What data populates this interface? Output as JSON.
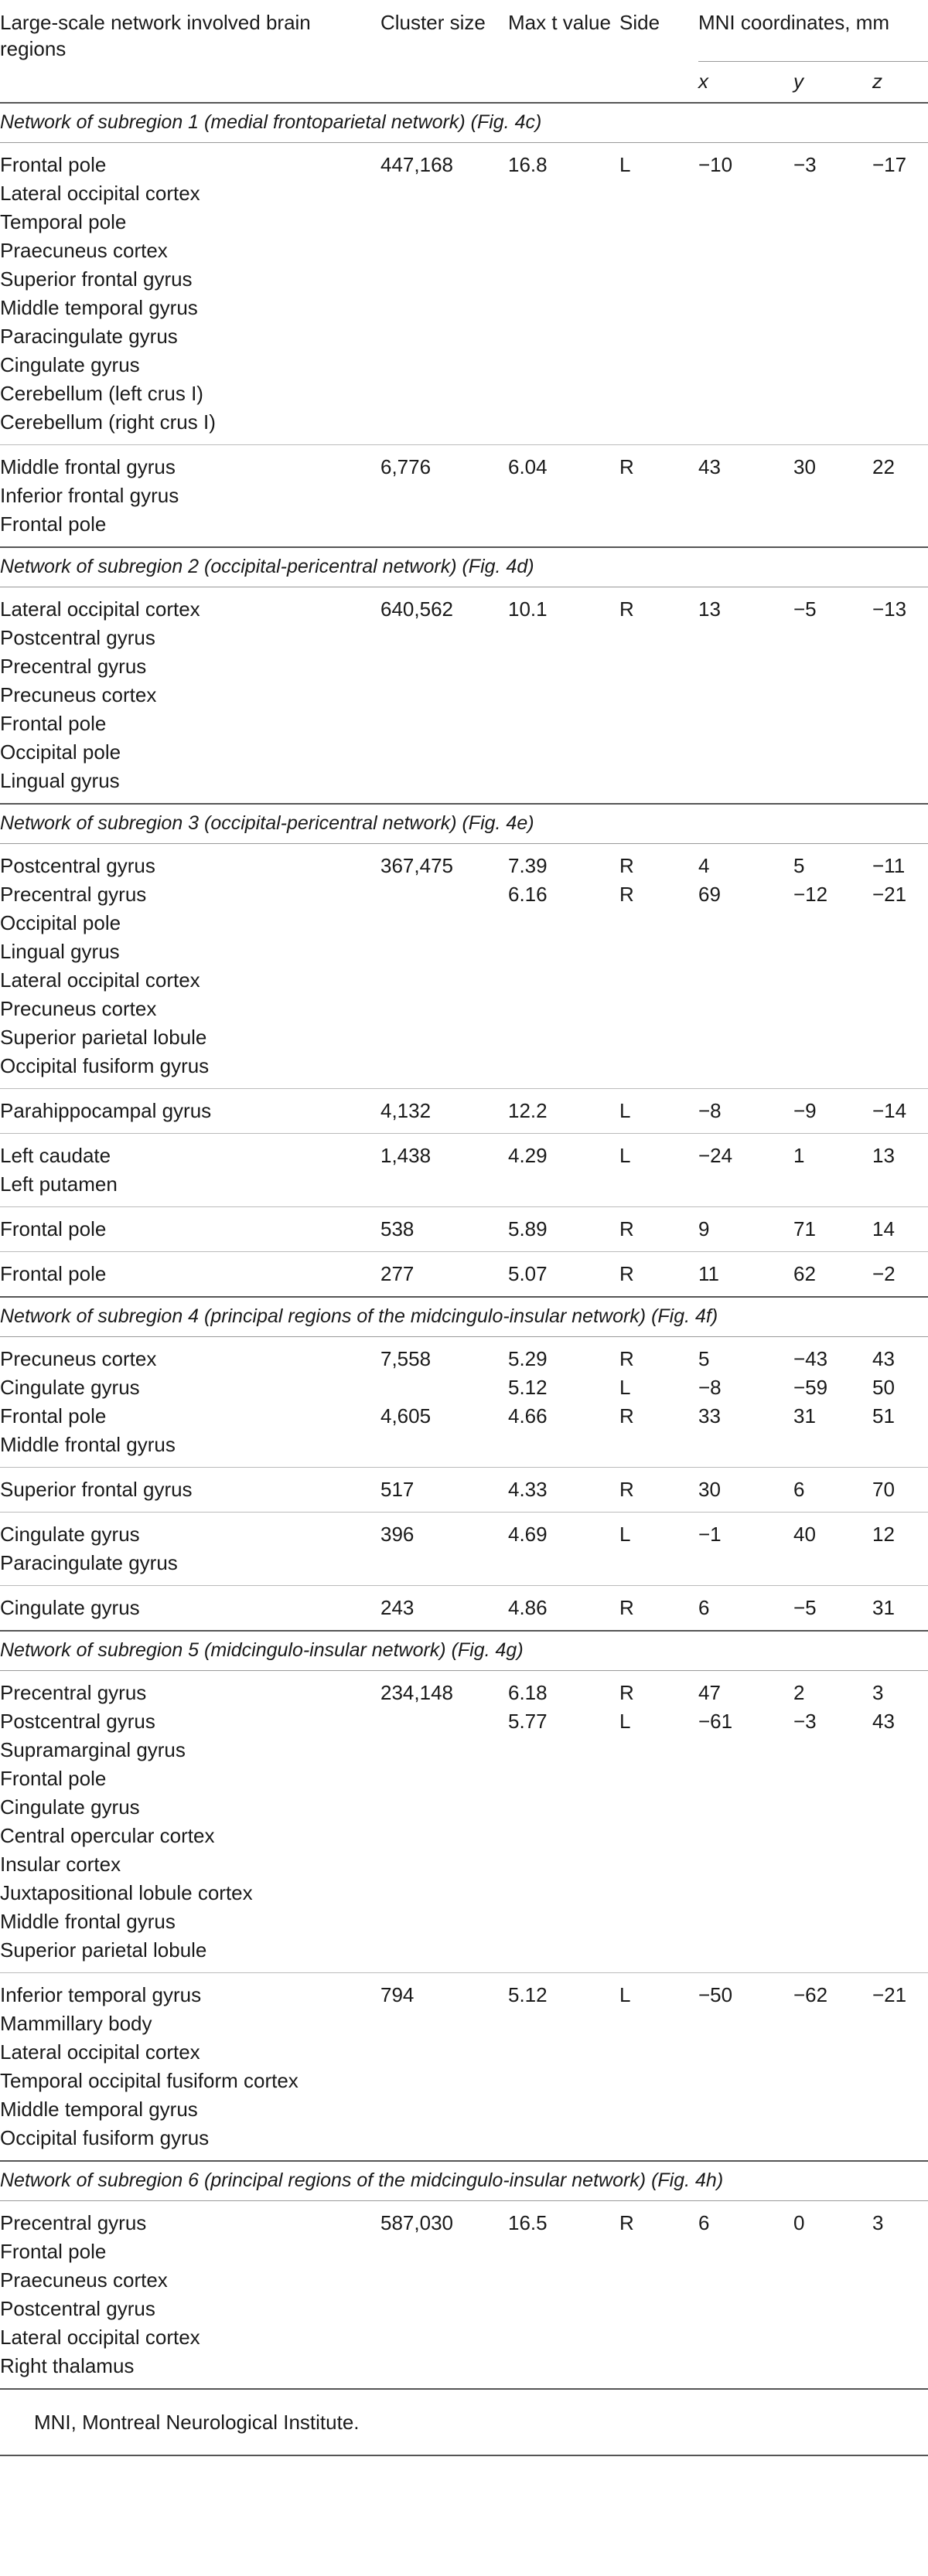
{
  "header": {
    "columns": [
      "Large-scale network involved brain regions",
      "Cluster size",
      "Max t value",
      "Side",
      "MNI coordinates, mm"
    ],
    "coords": [
      "x",
      "y",
      "z"
    ]
  },
  "sections": [
    {
      "title": "Network of subregion 1 (medial frontoparietal network) (Fig. 4c)",
      "rows": [
        [
          {
            "r": "Frontal pole",
            "c": "447,168",
            "t": "16.8",
            "s": "L",
            "x": "−10",
            "y": "−3",
            "z": "−17"
          },
          {
            "r": "Lateral occipital cortex"
          },
          {
            "r": "Temporal pole"
          },
          {
            "r": "Praecuneus cortex"
          },
          {
            "r": "Superior frontal gyrus"
          },
          {
            "r": "Middle temporal gyrus"
          },
          {
            "r": "Paracingulate gyrus"
          },
          {
            "r": "Cingulate gyrus"
          },
          {
            "r": "Cerebellum (left crus I)"
          },
          {
            "r": "Cerebellum (right crus I)"
          }
        ],
        [
          {
            "r": "Middle frontal gyrus",
            "c": "6,776",
            "t": "6.04",
            "s": "R",
            "x": "43",
            "y": "30",
            "z": "22"
          },
          {
            "r": "Inferior frontal gyrus"
          },
          {
            "r": "Frontal pole"
          }
        ]
      ]
    },
    {
      "title": "Network of subregion 2 (occipital-pericentral network) (Fig. 4d)",
      "rows": [
        [
          {
            "r": "Lateral occipital cortex",
            "c": "640,562",
            "t": "10.1",
            "s": "R",
            "x": "13",
            "y": "−5",
            "z": "−13"
          },
          {
            "r": "Postcentral gyrus"
          },
          {
            "r": "Precentral gyrus"
          },
          {
            "r": "Precuneus cortex"
          },
          {
            "r": "Frontal pole"
          },
          {
            "r": "Occipital pole"
          },
          {
            "r": "Lingual gyrus"
          }
        ]
      ]
    },
    {
      "title": "Network of subregion 3 (occipital-pericentral network) (Fig. 4e)",
      "rows": [
        [
          {
            "r": "Postcentral gyrus",
            "c": "367,475",
            "t": "7.39",
            "s": "R",
            "x": "4",
            "y": "5",
            "z": "−11"
          },
          {
            "r": "Precentral gyrus",
            "t": "6.16",
            "s": "R",
            "x": "69",
            "y": "−12",
            "z": "−21"
          },
          {
            "r": "Occipital pole"
          },
          {
            "r": "Lingual gyrus"
          },
          {
            "r": "Lateral occipital cortex"
          },
          {
            "r": "Precuneus cortex"
          },
          {
            "r": "Superior parietal lobule"
          },
          {
            "r": "Occipital fusiform gyrus"
          }
        ],
        [
          {
            "r": "Parahippocampal gyrus",
            "c": "4,132",
            "t": "12.2",
            "s": "L",
            "x": "−8",
            "y": "−9",
            "z": "−14"
          }
        ],
        [
          {
            "r": "Left caudate",
            "c": "1,438",
            "t": "4.29",
            "s": "L",
            "x": "−24",
            "y": "1",
            "z": "13"
          },
          {
            "r": "Left putamen"
          }
        ],
        [
          {
            "r": "Frontal pole",
            "c": "538",
            "t": "5.89",
            "s": "R",
            "x": "9",
            "y": "71",
            "z": "14"
          }
        ],
        [
          {
            "r": "Frontal pole",
            "c": "277",
            "t": "5.07",
            "s": "R",
            "x": "11",
            "y": "62",
            "z": "−2"
          }
        ]
      ]
    },
    {
      "title": "Network of subregion 4 (principal regions of the midcingulo-insular network) (Fig. 4f)",
      "rows": [
        [
          {
            "r": "Precuneus cortex",
            "c": "7,558",
            "t": "5.29",
            "s": "R",
            "x": "5",
            "y": "−43",
            "z": "43"
          },
          {
            "r": "Cingulate gyrus",
            "t": "5.12",
            "s": "L",
            "x": "−8",
            "y": "−59",
            "z": "50"
          },
          {
            "r": "Frontal pole",
            "c": "4,605",
            "t": "4.66",
            "s": "R",
            "x": "33",
            "y": "31",
            "z": "51"
          },
          {
            "r": "Middle frontal gyrus"
          }
        ],
        [
          {
            "r": "Superior frontal gyrus",
            "c": "517",
            "t": "4.33",
            "s": "R",
            "x": "30",
            "y": "6",
            "z": "70"
          }
        ],
        [
          {
            "r": "Cingulate gyrus",
            "c": "396",
            "t": "4.69",
            "s": "L",
            "x": "−1",
            "y": "40",
            "z": "12"
          },
          {
            "r": "Paracingulate gyrus"
          }
        ],
        [
          {
            "r": "Cingulate gyrus",
            "c": "243",
            "t": "4.86",
            "s": "R",
            "x": "6",
            "y": "−5",
            "z": "31"
          }
        ]
      ]
    },
    {
      "title": "Network of subregion 5 (midcingulo-insular network) (Fig. 4g)",
      "rows": [
        [
          {
            "r": "Precentral gyrus",
            "c": "234,148",
            "t": "6.18",
            "s": "R",
            "x": "47",
            "y": "2",
            "z": "3"
          },
          {
            "r": "Postcentral gyrus",
            "t": "5.77",
            "s": "L",
            "x": "−61",
            "y": "−3",
            "z": "43"
          },
          {
            "r": "Supramarginal gyrus"
          },
          {
            "r": "Frontal pole"
          },
          {
            "r": "Cingulate gyrus"
          },
          {
            "r": "Central opercular cortex"
          },
          {
            "r": "Insular cortex"
          },
          {
            "r": "Juxtapositional lobule cortex"
          },
          {
            "r": "Middle frontal gyrus"
          },
          {
            "r": "Superior parietal lobule"
          }
        ],
        [
          {
            "r": "Inferior temporal gyrus",
            "c": "794",
            "t": "5.12",
            "s": "L",
            "x": "−50",
            "y": "−62",
            "z": "−21"
          },
          {
            "r": "Mammillary body"
          },
          {
            "r": "Lateral occipital cortex"
          },
          {
            "r": "Temporal occipital fusiform cortex"
          },
          {
            "r": "Middle temporal gyrus"
          },
          {
            "r": "Occipital fusiform gyrus"
          }
        ]
      ]
    },
    {
      "title": "Network of subregion 6 (principal regions of the midcingulo-insular network) (Fig. 4h)",
      "rows": [
        [
          {
            "r": "Precentral gyrus",
            "c": "587,030",
            "t": "16.5",
            "s": "R",
            "x": "6",
            "y": "0",
            "z": "3"
          },
          {
            "r": "Frontal pole"
          },
          {
            "r": "Praecuneus cortex"
          },
          {
            "r": "Postcentral gyrus"
          },
          {
            "r": "Lateral occipital cortex"
          },
          {
            "r": "Right thalamus"
          }
        ]
      ]
    }
  ],
  "footnote": "MNI, Montreal Neurological Institute."
}
